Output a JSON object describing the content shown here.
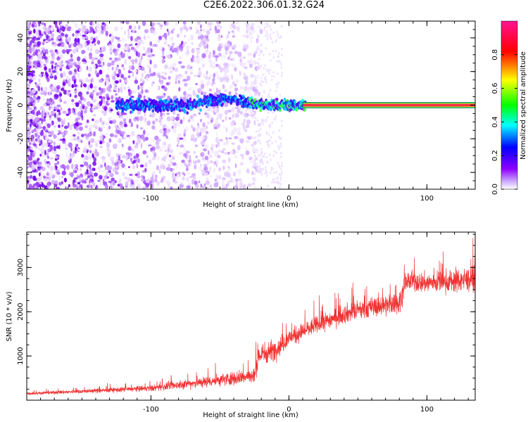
{
  "title": "C2E6.2022.306.01.32.G24",
  "chart_data": [
    {
      "type": "heatmap",
      "xlabel": "Height of straight line (km)",
      "ylabel": "Frequency (Hz)",
      "xlim": [
        -190,
        135
      ],
      "ylim": [
        -50,
        50
      ],
      "xticks": [
        -100,
        0,
        100
      ],
      "yticks": [
        -40,
        -20,
        0,
        20,
        40
      ],
      "colorbar": {
        "label": "Normalized spectral amplitude",
        "range": [
          0,
          1
        ],
        "ticks": [
          0.0,
          0.2,
          0.4,
          0.6,
          0.8
        ],
        "colormap": [
          "#ffffff",
          "#8f00ff",
          "#0000ff",
          "#00ffff",
          "#00ff00",
          "#ffff00",
          "#ff0000",
          "#ff00aa"
        ]
      },
      "features": {
        "noise_region_x": [
          -190,
          -30
        ],
        "signal_band_x": [
          -125,
          12
        ],
        "flat_line_x": [
          10,
          135
        ],
        "flat_line_y": 0
      }
    },
    {
      "type": "line",
      "xlabel": "Height of straight line (km)",
      "ylabel": "SNR (10 * v/v)",
      "xlim": [
        -190,
        135
      ],
      "ylim": [
        0,
        3800
      ],
      "xticks": [
        -100,
        0,
        100
      ],
      "yticks": [
        1000,
        2000,
        3000
      ],
      "color": "#f03232",
      "series_profile": {
        "x": [
          -190,
          -150,
          -100,
          -60,
          -40,
          -25,
          -22,
          -10,
          0,
          20,
          40,
          60,
          80,
          85,
          100,
          120,
          135
        ],
        "mean": [
          150,
          200,
          270,
          420,
          500,
          550,
          1000,
          1150,
          1400,
          1700,
          1950,
          2100,
          2200,
          2700,
          2650,
          2700,
          2750
        ],
        "spread": [
          60,
          80,
          120,
          220,
          280,
          300,
          500,
          400,
          350,
          350,
          380,
          400,
          450,
          400,
          420,
          480,
          500
        ]
      }
    }
  ]
}
